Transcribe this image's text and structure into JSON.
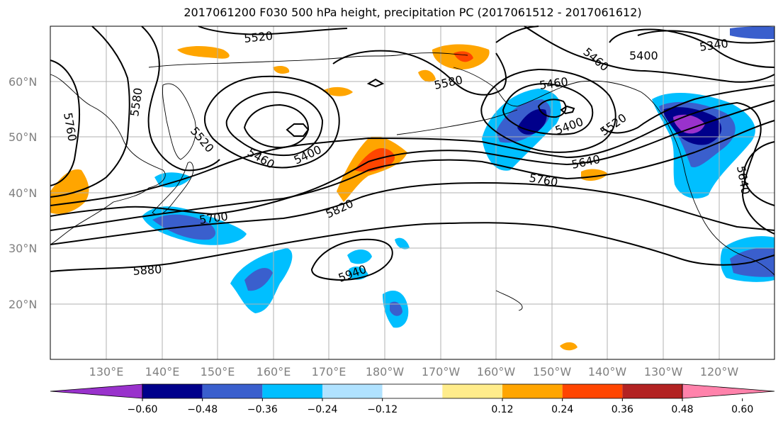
{
  "title": "2017061200 F030 500 hPa height, precipitation PC (2017061512 - 2017061612)",
  "lat_labels": [
    "60°N",
    "50°N",
    "40°N",
    "30°N",
    "20°N"
  ],
  "lon_labels": [
    "130°E",
    "140°E",
    "150°E",
    "160°E",
    "170°E",
    "180°W",
    "170°W",
    "160°W",
    "150°W",
    "140°W",
    "130°W",
    "120°W"
  ],
  "contour_labels": [
    "5520",
    "5580",
    "5760",
    "5520",
    "5460",
    "5400",
    "5700",
    "5820",
    "5880",
    "5940",
    "5460",
    "5400",
    "5340",
    "5580",
    "5460",
    "5400",
    "5520",
    "5640",
    "5760",
    "5640"
  ],
  "colorbar": {
    "ticks": [
      "−0.60",
      "−0.48",
      "−0.36",
      "−0.24",
      "−0.12",
      "0.12",
      "0.24",
      "0.36",
      "0.48",
      "0.60"
    ],
    "colors": [
      "#9932CC",
      "#00008B",
      "#3A5FCD",
      "#00BFFF",
      "#B0E2FF",
      "#FFFFFF",
      "#FFEC8B",
      "#FFA500",
      "#FF4500",
      "#B22222",
      "#FF82AB"
    ]
  },
  "palette": {
    "blue_light": "#B0E2FF",
    "blue": "#00BFFF",
    "blue_mid": "#3A5FCD",
    "navy": "#00008B",
    "purple": "#9932CC",
    "yellow": "#FFEC8B",
    "orange": "#FFA500",
    "red_orange": "#FF4500"
  }
}
